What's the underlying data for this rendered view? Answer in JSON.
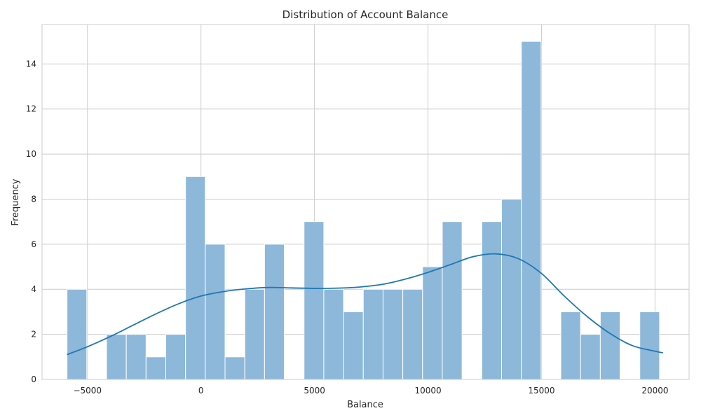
{
  "chart_data": {
    "type": "bar",
    "title": "Distribution of Account Balance",
    "xlabel": "Balance",
    "ylabel": "Frequency",
    "xlim": [
      -7000,
      21500
    ],
    "ylim": [
      0,
      15.75
    ],
    "x_ticks": [
      -5000,
      0,
      5000,
      10000,
      15000,
      20000
    ],
    "x_tick_labels": [
      "−5000",
      "0",
      "5000",
      "10000",
      "15000",
      "20000"
    ],
    "y_ticks": [
      0,
      2,
      4,
      6,
      8,
      10,
      12,
      14
    ],
    "y_tick_labels": [
      "0",
      "2",
      "4",
      "6",
      "8",
      "10",
      "12",
      "14"
    ],
    "grid": true,
    "bins": {
      "start": -5900,
      "width": 870,
      "counts": [
        4,
        0,
        2,
        2,
        1,
        2,
        9,
        6,
        1,
        4,
        6,
        0,
        7,
        4,
        3,
        4,
        4,
        4,
        5,
        7,
        0,
        7,
        8,
        15,
        0,
        3,
        2,
        3,
        0,
        3
      ]
    },
    "kde": {
      "x": [
        -5900,
        -5000,
        -4000,
        -3000,
        -2000,
        -1000,
        0,
        1000,
        2000,
        3000,
        4000,
        5000,
        6000,
        7000,
        8000,
        9000,
        10000,
        11000,
        12000,
        13000,
        14000,
        15000,
        16000,
        17000,
        18000,
        19000,
        20000,
        20350
      ],
      "y": [
        1.1,
        1.45,
        1.9,
        2.4,
        2.9,
        3.35,
        3.7,
        3.9,
        4.02,
        4.08,
        4.06,
        4.04,
        4.05,
        4.1,
        4.22,
        4.45,
        4.75,
        5.1,
        5.45,
        5.57,
        5.35,
        4.7,
        3.7,
        2.8,
        2.05,
        1.5,
        1.25,
        1.18
      ]
    },
    "colors": {
      "bar": "#8db8da",
      "bar_edge": "#ffffff",
      "kde": "#1f77b4",
      "grid": "#cccccc"
    }
  }
}
